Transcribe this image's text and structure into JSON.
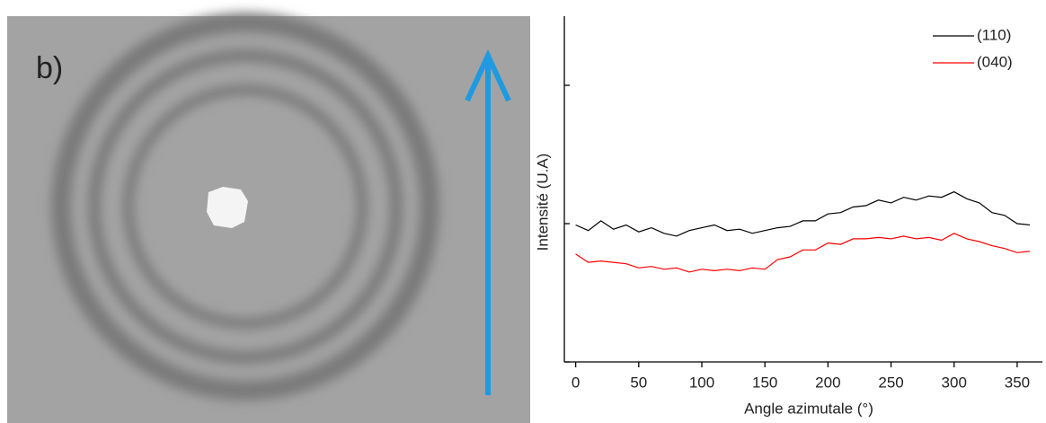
{
  "image": {
    "panel_label": "b)"
  },
  "chart_data": {
    "type": "line",
    "xlabel": "Angle azimutale (°)",
    "ylabel": "Intensité (U.A)",
    "x": [
      0,
      10,
      20,
      30,
      40,
      50,
      60,
      70,
      80,
      90,
      100,
      110,
      120,
      130,
      140,
      150,
      160,
      170,
      180,
      190,
      200,
      210,
      220,
      230,
      240,
      250,
      260,
      270,
      280,
      290,
      300,
      310,
      320,
      330,
      340,
      350,
      360
    ],
    "series": [
      {
        "name": "(110)",
        "color": "#000000",
        "values": [
          0.99,
          0.95,
          1.02,
          0.96,
          0.99,
          0.94,
          0.97,
          0.93,
          0.91,
          0.95,
          0.97,
          0.99,
          0.95,
          0.96,
          0.93,
          0.95,
          0.97,
          0.98,
          1.02,
          1.02,
          1.07,
          1.08,
          1.12,
          1.13,
          1.17,
          1.15,
          1.19,
          1.17,
          1.2,
          1.19,
          1.23,
          1.18,
          1.15,
          1.08,
          1.06,
          1.0,
          0.99
        ]
      },
      {
        "name": "(040)",
        "color": "#ff0000",
        "values": [
          0.78,
          0.72,
          0.73,
          0.72,
          0.71,
          0.68,
          0.69,
          0.67,
          0.68,
          0.65,
          0.67,
          0.66,
          0.67,
          0.66,
          0.68,
          0.67,
          0.74,
          0.76,
          0.81,
          0.81,
          0.86,
          0.85,
          0.89,
          0.89,
          0.9,
          0.89,
          0.91,
          0.89,
          0.9,
          0.88,
          0.93,
          0.89,
          0.87,
          0.84,
          0.82,
          0.79,
          0.8
        ]
      }
    ],
    "xlim": [
      -9,
      370
    ],
    "ylim": [
      0,
      2.5
    ],
    "xticks": [
      0,
      50,
      100,
      150,
      200,
      250,
      300,
      350
    ],
    "yticks": [
      0,
      1,
      2
    ],
    "legend": "upper-right"
  }
}
